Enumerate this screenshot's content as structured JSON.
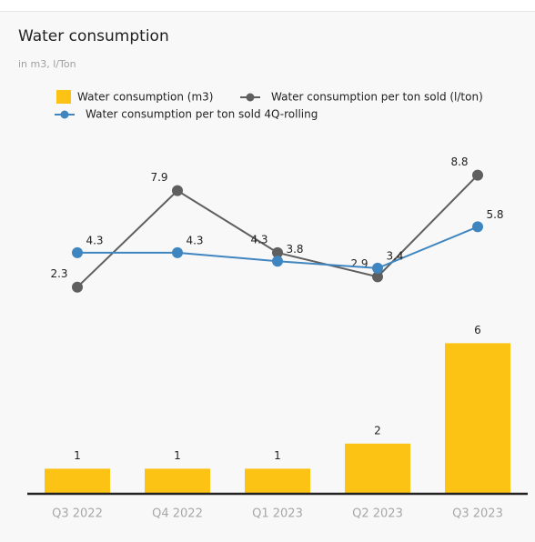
{
  "chart_data": {
    "type": "bar-line",
    "title": "Water consumption",
    "subtitle": "in m3, l/Ton",
    "categories": [
      "Q3 2022",
      "Q4 2022",
      "Q1 2023",
      "Q2 2023",
      "Q3 2023"
    ],
    "series": [
      {
        "name": "Water consumption (m3)",
        "type": "bar",
        "color": "#fcc314",
        "values": [
          1,
          1,
          1,
          2,
          6
        ]
      },
      {
        "name": "Water consumption per ton sold (l/ton)",
        "type": "line",
        "axis": "y2",
        "color": "#5f5f5f",
        "values": [
          2.3,
          7.9,
          4.3,
          2.9,
          8.8
        ]
      },
      {
        "name": "Water consumption per ton sold 4Q-rolling",
        "type": "line",
        "axis": "y2",
        "color": "#3f86c0",
        "values": [
          4.3,
          4.3,
          3.8,
          3.4,
          5.8
        ]
      }
    ],
    "ylim": [
      0,
      14
    ],
    "y2lim": [
      -9.7,
      10.7
    ],
    "grid": false
  }
}
